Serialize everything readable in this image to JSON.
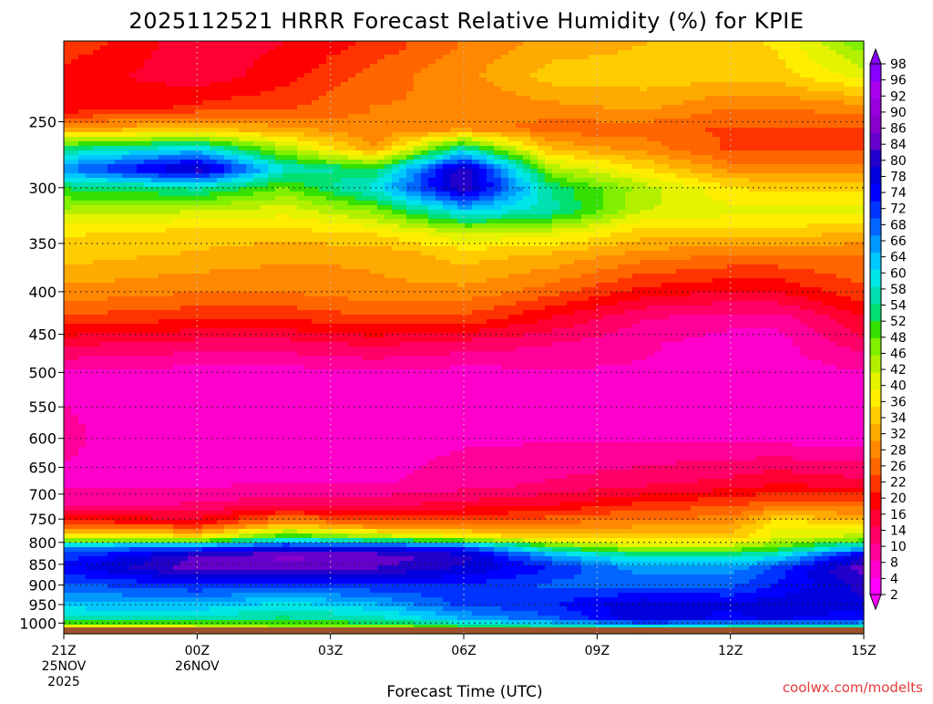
{
  "chart_data": {
    "type": "heatmap",
    "title": "2025112521 HRRR Forecast Relative Humidity (%) for KPIE",
    "xlabel": "Forecast Time (UTC)",
    "ylabel": "",
    "watermark": "coolwx.com/modelts",
    "x_ticks": [
      {
        "hour": 0,
        "lines": [
          "21Z",
          "25NOV",
          "2025"
        ]
      },
      {
        "hour": 3,
        "lines": [
          "00Z",
          "26NOV"
        ]
      },
      {
        "hour": 6,
        "lines": [
          "03Z"
        ]
      },
      {
        "hour": 9,
        "lines": [
          "06Z"
        ]
      },
      {
        "hour": 12,
        "lines": [
          "09Z"
        ]
      },
      {
        "hour": 15,
        "lines": [
          "12Z"
        ]
      },
      {
        "hour": 18,
        "lines": [
          "15Z"
        ]
      }
    ],
    "xlim": [
      0,
      18
    ],
    "y_axis": "pressure (hPa), log scale, decreasing upward",
    "ylim": [
      1030,
      200
    ],
    "y_ticks": [
      250,
      300,
      350,
      400,
      450,
      500,
      550,
      600,
      650,
      700,
      750,
      800,
      850,
      900,
      950,
      1000
    ],
    "grid": true,
    "colorbar": {
      "labels": [
        2,
        4,
        8,
        10,
        14,
        16,
        20,
        22,
        26,
        28,
        32,
        34,
        36,
        40,
        42,
        46,
        48,
        52,
        54,
        58,
        60,
        64,
        66,
        68,
        72,
        74,
        78,
        80,
        84,
        86,
        90,
        92,
        96,
        98
      ],
      "colors": [
        "#ff00ff",
        "#ff00cc",
        "#ff0099",
        "#ff0066",
        "#ff0033",
        "#ff0000",
        "#ff3300",
        "#ff6600",
        "#ff8800",
        "#ffaa00",
        "#ffcc00",
        "#ffee00",
        "#e5f200",
        "#b3f000",
        "#80f000",
        "#33e000",
        "#00e070",
        "#00e0b0",
        "#00e6e6",
        "#00c8ff",
        "#0099ff",
        "#0066ff",
        "#0033ff",
        "#0000ff",
        "#0000dd",
        "#2200cc",
        "#6600cc",
        "#8800cc",
        "#9900dd",
        "#aa00ee",
        "#8800ff"
      ],
      "placement": "right"
    },
    "profiles": [
      {
        "hour": 0,
        "levels": [
          200,
          220,
          240,
          255,
          270,
          285,
          300,
          320,
          340,
          360,
          400,
          430,
          460,
          500,
          600,
          680,
          720,
          760,
          790,
          810,
          830,
          860,
          900,
          950,
          990,
          1010
        ],
        "rh": [
          22,
          18,
          16,
          30,
          55,
          68,
          52,
          44,
          36,
          34,
          28,
          22,
          14,
          6,
          7,
          6,
          8,
          22,
          40,
          66,
          72,
          76,
          70,
          64,
          54,
          40
        ]
      },
      {
        "hour": 3,
        "levels": [
          200,
          220,
          240,
          255,
          270,
          285,
          300,
          320,
          340,
          360,
          400,
          430,
          460,
          500,
          600,
          680,
          720,
          760,
          790,
          810,
          830,
          860,
          900,
          950,
          990,
          1010
        ],
        "rh": [
          14,
          14,
          20,
          32,
          62,
          84,
          56,
          42,
          34,
          32,
          26,
          20,
          12,
          5,
          4,
          6,
          10,
          18,
          38,
          70,
          84,
          86,
          74,
          64,
          56,
          42
        ]
      },
      {
        "hour": 5,
        "levels": [
          200,
          220,
          240,
          255,
          270,
          285,
          300,
          320,
          340,
          360,
          400,
          430,
          460,
          500,
          600,
          680,
          720,
          760,
          790,
          810,
          830,
          860,
          900,
          950,
          990,
          1010
        ],
        "rh": [
          16,
          18,
          22,
          30,
          44,
          58,
          48,
          40,
          34,
          30,
          26,
          20,
          12,
          5,
          5,
          6,
          12,
          30,
          54,
          76,
          88,
          86,
          72,
          60,
          54,
          46
        ]
      },
      {
        "hour": 7,
        "levels": [
          200,
          220,
          240,
          255,
          270,
          285,
          300,
          320,
          340,
          360,
          400,
          430,
          460,
          500,
          600,
          680,
          720,
          760,
          790,
          810,
          830,
          860,
          900,
          950,
          990,
          1010
        ],
        "rh": [
          20,
          24,
          26,
          26,
          30,
          52,
          60,
          46,
          36,
          30,
          28,
          22,
          14,
          6,
          5,
          6,
          12,
          24,
          46,
          76,
          86,
          84,
          74,
          64,
          56,
          46
        ]
      },
      {
        "hour": 9,
        "levels": [
          200,
          220,
          240,
          255,
          270,
          285,
          300,
          320,
          340,
          360,
          400,
          430,
          460,
          500,
          600,
          680,
          720,
          760,
          790,
          810,
          830,
          860,
          900,
          950,
          990,
          1010
        ],
        "rh": [
          26,
          28,
          26,
          28,
          58,
          84,
          84,
          62,
          42,
          34,
          28,
          22,
          12,
          5,
          6,
          8,
          14,
          24,
          40,
          72,
          82,
          80,
          74,
          72,
          64,
          52
        ]
      },
      {
        "hour": 11,
        "levels": [
          200,
          220,
          240,
          255,
          270,
          285,
          300,
          320,
          340,
          360,
          400,
          430,
          460,
          500,
          600,
          680,
          720,
          760,
          790,
          810,
          830,
          860,
          900,
          950,
          990,
          1010
        ],
        "rh": [
          30,
          34,
          28,
          24,
          32,
          44,
          54,
          56,
          40,
          32,
          24,
          16,
          10,
          6,
          6,
          10,
          16,
          26,
          34,
          50,
          66,
          74,
          70,
          74,
          70,
          56
        ]
      },
      {
        "hour": 13,
        "levels": [
          200,
          220,
          240,
          255,
          270,
          285,
          300,
          320,
          340,
          360,
          400,
          430,
          460,
          500,
          600,
          680,
          720,
          760,
          790,
          810,
          830,
          860,
          900,
          950,
          990,
          1010
        ],
        "rh": [
          32,
          34,
          30,
          24,
          28,
          36,
          44,
          42,
          34,
          28,
          18,
          10,
          7,
          6,
          6,
          12,
          20,
          28,
          34,
          42,
          56,
          66,
          70,
          80,
          80,
          60
        ]
      },
      {
        "hour": 15,
        "levels": [
          200,
          220,
          240,
          255,
          270,
          285,
          300,
          320,
          340,
          360,
          400,
          430,
          460,
          500,
          600,
          680,
          720,
          760,
          790,
          810,
          830,
          860,
          900,
          950,
          990,
          1010
        ],
        "rh": [
          34,
          34,
          26,
          22,
          22,
          28,
          36,
          40,
          34,
          26,
          16,
          8,
          5,
          5,
          6,
          14,
          22,
          28,
          34,
          44,
          56,
          66,
          70,
          78,
          76,
          58
        ]
      },
      {
        "hour": 16,
        "levels": [
          200,
          220,
          240,
          255,
          270,
          285,
          300,
          320,
          340,
          360,
          400,
          430,
          460,
          500,
          600,
          680,
          720,
          760,
          790,
          810,
          830,
          860,
          900,
          950,
          990,
          1010
        ],
        "rh": [
          36,
          34,
          26,
          22,
          22,
          28,
          34,
          40,
          34,
          26,
          16,
          8,
          5,
          5,
          5,
          16,
          24,
          38,
          40,
          48,
          60,
          72,
          74,
          80,
          78,
          58
        ]
      },
      {
        "hour": 18,
        "levels": [
          200,
          220,
          240,
          255,
          270,
          285,
          300,
          320,
          340,
          360,
          400,
          430,
          460,
          500,
          600,
          680,
          720,
          760,
          790,
          810,
          830,
          860,
          900,
          950,
          990,
          1010
        ],
        "rh": [
          48,
          40,
          28,
          22,
          22,
          28,
          34,
          40,
          32,
          26,
          22,
          16,
          12,
          6,
          5,
          14,
          24,
          34,
          44,
          62,
          80,
          86,
          82,
          80,
          74,
          58
        ]
      }
    ],
    "ground_below_hPa": 1012
  }
}
